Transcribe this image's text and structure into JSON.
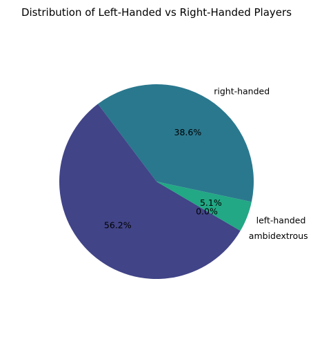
{
  "chart_data": {
    "type": "pie",
    "title": "Distribution of Left-Handed vs Right-Handed Players",
    "slices": [
      {
        "label": "right-handed",
        "value": 38.6,
        "pct_label": "38.6%",
        "color": "#2a788e"
      },
      {
        "label": "",
        "value": 56.2,
        "pct_label": "56.2%",
        "color": "#414487"
      },
      {
        "label": "ambidextrous",
        "value": 0.0,
        "pct_label": "0.0%",
        "color": "#7ad151"
      },
      {
        "label": "left-handed",
        "value": 5.1,
        "pct_label": "5.1%",
        "color": "#22a884"
      }
    ],
    "legend": "none"
  }
}
